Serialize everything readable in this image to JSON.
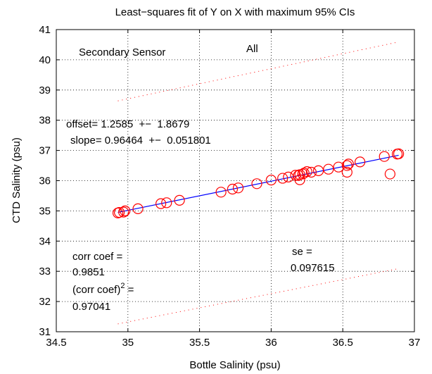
{
  "chart_data": {
    "type": "scatter",
    "title": "Least−squares fit of Y on X with maximum 95% CIs",
    "xlabel": "Bottle Salinity (psu)",
    "ylabel": "CTD Salinity (psu)",
    "xlim": [
      34.5,
      37
    ],
    "ylim": [
      31,
      41
    ],
    "xticks": [
      "34.5",
      "35",
      "35.5",
      "36",
      "36.5",
      "37"
    ],
    "yticks": [
      "31",
      "32",
      "33",
      "34",
      "35",
      "36",
      "37",
      "38",
      "39",
      "40",
      "41"
    ],
    "grid": true,
    "annotations": {
      "sensor": "Secondary Sensor",
      "subset": "All",
      "offset": "offset= 1.2585  +−  1.8679",
      "slope": "slope= 0.96464  +−  0.051801",
      "corr_label": "corr coef =",
      "corr_value": "0.9851",
      "corr2_label_pre": "(corr coef)",
      "corr2_label_sup": "2",
      "corr2_label_post": " =",
      "corr2_value": "0.97041",
      "se_label": "se =",
      "se_value": "0.097615"
    },
    "series": [
      {
        "type": "scatter",
        "color": "#ff0000",
        "marker": "circle",
        "points": [
          [
            34.93,
            34.93
          ],
          [
            34.94,
            34.95
          ],
          [
            34.97,
            34.96
          ],
          [
            34.98,
            35.0
          ],
          [
            35.07,
            35.07
          ],
          [
            35.23,
            35.24
          ],
          [
            35.27,
            35.27
          ],
          [
            35.36,
            35.35
          ],
          [
            35.65,
            35.62
          ],
          [
            35.73,
            35.72
          ],
          [
            35.77,
            35.76
          ],
          [
            35.9,
            35.9
          ],
          [
            36.0,
            36.02
          ],
          [
            36.08,
            36.08
          ],
          [
            36.12,
            36.12
          ],
          [
            36.17,
            36.18
          ],
          [
            36.19,
            36.17
          ],
          [
            36.2,
            36.2
          ],
          [
            36.2,
            36.03
          ],
          [
            36.22,
            36.22
          ],
          [
            36.23,
            36.25
          ],
          [
            36.25,
            36.3
          ],
          [
            36.28,
            36.28
          ],
          [
            36.33,
            36.33
          ],
          [
            36.4,
            36.38
          ],
          [
            36.47,
            36.45
          ],
          [
            36.53,
            36.5
          ],
          [
            36.54,
            36.55
          ],
          [
            36.53,
            36.28
          ],
          [
            36.62,
            36.62
          ],
          [
            36.79,
            36.8
          ],
          [
            36.83,
            36.22
          ],
          [
            36.88,
            36.88
          ],
          [
            36.89,
            36.89
          ]
        ]
      },
      {
        "type": "line",
        "color": "#0000ff",
        "x": [
          34.93,
          36.89
        ],
        "y": [
          34.95,
          36.84
        ]
      },
      {
        "type": "line",
        "style": "dotted",
        "color": "#ff0000",
        "x": [
          34.93,
          36.89
        ],
        "y": [
          38.64,
          40.59
        ]
      },
      {
        "type": "line",
        "style": "dotted",
        "color": "#ff0000",
        "x": [
          34.93,
          36.89
        ],
        "y": [
          31.26,
          33.09
        ]
      }
    ]
  }
}
